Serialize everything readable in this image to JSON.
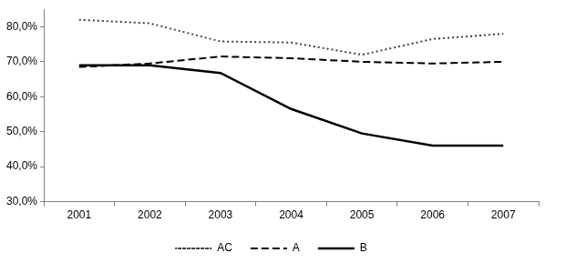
{
  "chart_data": {
    "type": "line",
    "categories": [
      "2001",
      "2002",
      "2003",
      "2004",
      "2005",
      "2006",
      "2007"
    ],
    "series": [
      {
        "name": "AC",
        "color": "#404040",
        "line_style": "dotted",
        "values": [
          82,
          81,
          75.8,
          75.5,
          72,
          76.5,
          78
        ]
      },
      {
        "name": "A",
        "color": "#000000",
        "line_style": "dashed",
        "values": [
          68.5,
          69.5,
          71.5,
          71,
          70,
          69.5,
          70
        ]
      },
      {
        "name": "B",
        "color": "#000000",
        "line_style": "solid",
        "values": [
          69,
          69,
          66.8,
          56.5,
          49.5,
          46,
          46
        ]
      }
    ],
    "ylim": [
      30,
      85
    ],
    "yticks": [
      {
        "value": 30,
        "label": "30,0%"
      },
      {
        "value": 40,
        "label": "40,0%"
      },
      {
        "value": 50,
        "label": "50,0%"
      },
      {
        "value": 60,
        "label": "60,0%"
      },
      {
        "value": 70,
        "label": "70,0%"
      },
      {
        "value": 80,
        "label": "80,0%"
      }
    ],
    "grid": false,
    "legend": "bottom"
  }
}
